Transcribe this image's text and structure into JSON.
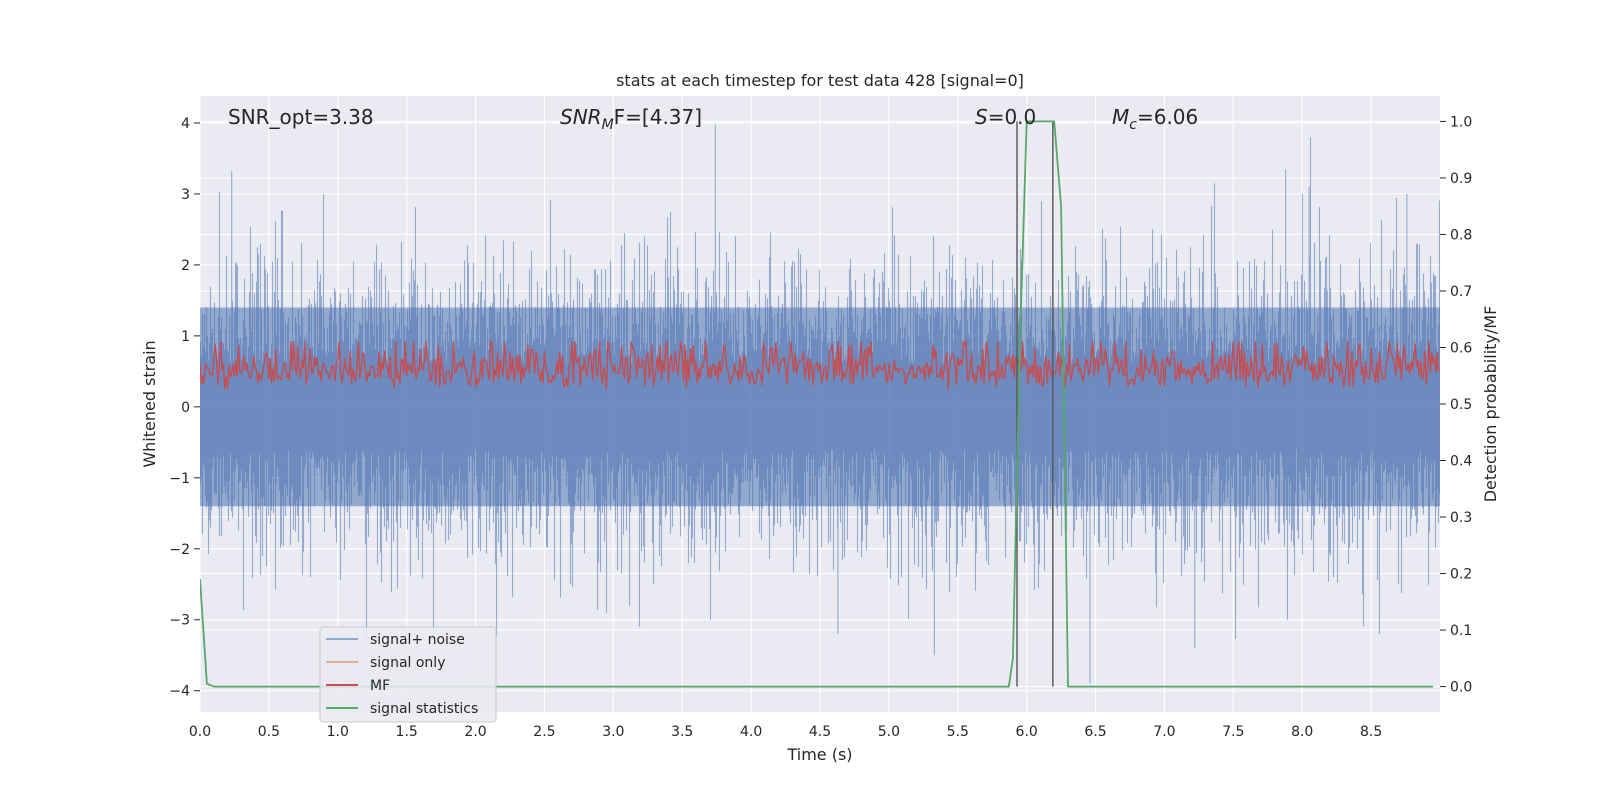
{
  "chart_data": {
    "type": "line",
    "title": "stats at each timestep for test data 428 [signal=0]",
    "xlabel": "Time (s)",
    "ylabel_left": "Whitened strain",
    "ylabel_right": "Detection probability/MF",
    "xlim": [
      0.0,
      9.0
    ],
    "ylim_left": [
      -4.3,
      4.38
    ],
    "ylim_right": [
      -0.045,
      1.045
    ],
    "x_ticks": [
      "0.0",
      "0.5",
      "1.0",
      "1.5",
      "2.0",
      "2.5",
      "3.0",
      "3.5",
      "4.0",
      "4.5",
      "5.0",
      "5.5",
      "6.0",
      "6.5",
      "7.0",
      "7.5",
      "8.0",
      "8.5"
    ],
    "x_tick_values": [
      0.0,
      0.5,
      1.0,
      1.5,
      2.0,
      2.5,
      3.0,
      3.5,
      4.0,
      4.5,
      5.0,
      5.5,
      6.0,
      6.5,
      7.0,
      7.5,
      8.0,
      8.5
    ],
    "y_ticks_left": [
      "−4",
      "−3",
      "−2",
      "−1",
      "0",
      "1",
      "2",
      "3",
      "4"
    ],
    "y_tick_values_left": [
      -4,
      -3,
      -2,
      -1,
      0,
      1,
      2,
      3,
      4
    ],
    "y_ticks_right": [
      "0.0",
      "0.1",
      "0.2",
      "0.3",
      "0.4",
      "0.5",
      "0.6",
      "0.7",
      "0.8",
      "0.9",
      "1.0"
    ],
    "y_tick_values_right": [
      0.0,
      0.1,
      0.2,
      0.3,
      0.4,
      0.5,
      0.6,
      0.7,
      0.8,
      0.9,
      1.0
    ],
    "grid": true,
    "legend_position": "lower-left",
    "annotations": {
      "snr_opt": "SNR_opt=3.38",
      "snr_mf_italic": "SNR",
      "snr_mf_sub": "M",
      "snr_mf_rest": "F=[4.37]",
      "s_italic": "S",
      "s_rest": "=0.0",
      "mc_italic": "M",
      "mc_sub": "c",
      "mc_rest": "=6.06"
    },
    "noise_band": {
      "axis": "left",
      "core_range": [
        -1.4,
        1.4
      ],
      "max_abs": 4.0,
      "spike_peaks": [
        {
          "x": 0.23,
          "y": 3.32
        },
        {
          "x": 3.74,
          "y": 3.98
        },
        {
          "x": 7.88,
          "y": 3.35
        },
        {
          "x": 5.33,
          "y": -3.5
        },
        {
          "x": 6.46,
          "y": -3.9
        },
        {
          "x": 8.56,
          "y": -3.2
        },
        {
          "x": 8.76,
          "y": 3.0
        },
        {
          "x": 3.19,
          "y": -3.1
        },
        {
          "x": 4.63,
          "y": -3.2
        },
        {
          "x": 7.22,
          "y": -3.4
        },
        {
          "x": 8.05,
          "y": 3.1
        }
      ]
    },
    "mf_band": {
      "axis": "right",
      "range": [
        0.5,
        0.6
      ]
    },
    "vertical_markers": [
      5.93,
      6.19
    ],
    "series": [
      {
        "name": "signal+ noise",
        "color": "#4c72b0",
        "axis": "left"
      },
      {
        "name": "signal only",
        "color": "#dd8452",
        "axis": "left",
        "x": [],
        "y": []
      },
      {
        "name": "MF",
        "color": "#c44e52",
        "axis": "right"
      },
      {
        "name": "signal statistics",
        "color": "#55a868",
        "axis": "right",
        "x": [
          0.0,
          0.05,
          0.1,
          0.15,
          5.6,
          5.87,
          5.9,
          5.95,
          6.0,
          6.05,
          6.2,
          6.25,
          6.3,
          6.35,
          8.95
        ],
        "y": [
          0.19,
          0.005,
          0.0,
          0.0,
          0.0,
          0.0,
          0.05,
          0.6,
          1.0,
          1.0,
          1.0,
          0.85,
          0.0,
          0.0,
          0.0
        ]
      }
    ]
  }
}
